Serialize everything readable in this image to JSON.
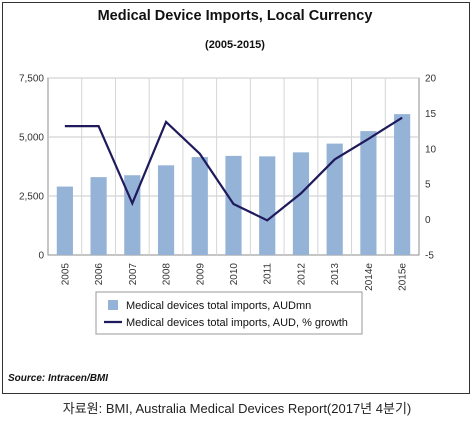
{
  "chart_data": {
    "type": "bar",
    "title": "Medical Device Imports, Local Currency",
    "subtitle": "(2005-2015)",
    "categories": [
      "2005",
      "2006",
      "2007",
      "2008",
      "2009",
      "2010",
      "2011",
      "2012",
      "2013",
      "2014e",
      "2015e"
    ],
    "y_left": {
      "ticks": [
        "0",
        "2,500",
        "5,000",
        "7,500"
      ],
      "range": [
        0,
        7500
      ]
    },
    "y_right": {
      "ticks": [
        "-5",
        "0",
        "5",
        "10",
        "15",
        "20"
      ],
      "range": [
        -5,
        20
      ]
    },
    "series": [
      {
        "name": "Medical devices total imports, AUDmn",
        "type": "bar",
        "axis": "left",
        "color": "#95b3d7",
        "values": [
          2900,
          3300,
          3380,
          3800,
          4150,
          4200,
          4180,
          4350,
          4720,
          5250,
          5970
        ]
      },
      {
        "name": "Medical devices total imports, AUD, % growth",
        "type": "line",
        "axis": "right",
        "color": "#1f1a5c",
        "values": [
          13.2,
          13.2,
          2.3,
          13.8,
          9.3,
          2.2,
          -0.1,
          3.7,
          8.5,
          11.4,
          14.4
        ]
      }
    ],
    "grid": true,
    "legend_position": "bottom"
  },
  "source": "Source: Intracen/BMI",
  "caption": "자료원: BMI, Australia Medical Devices Report(2017년 4분기)"
}
